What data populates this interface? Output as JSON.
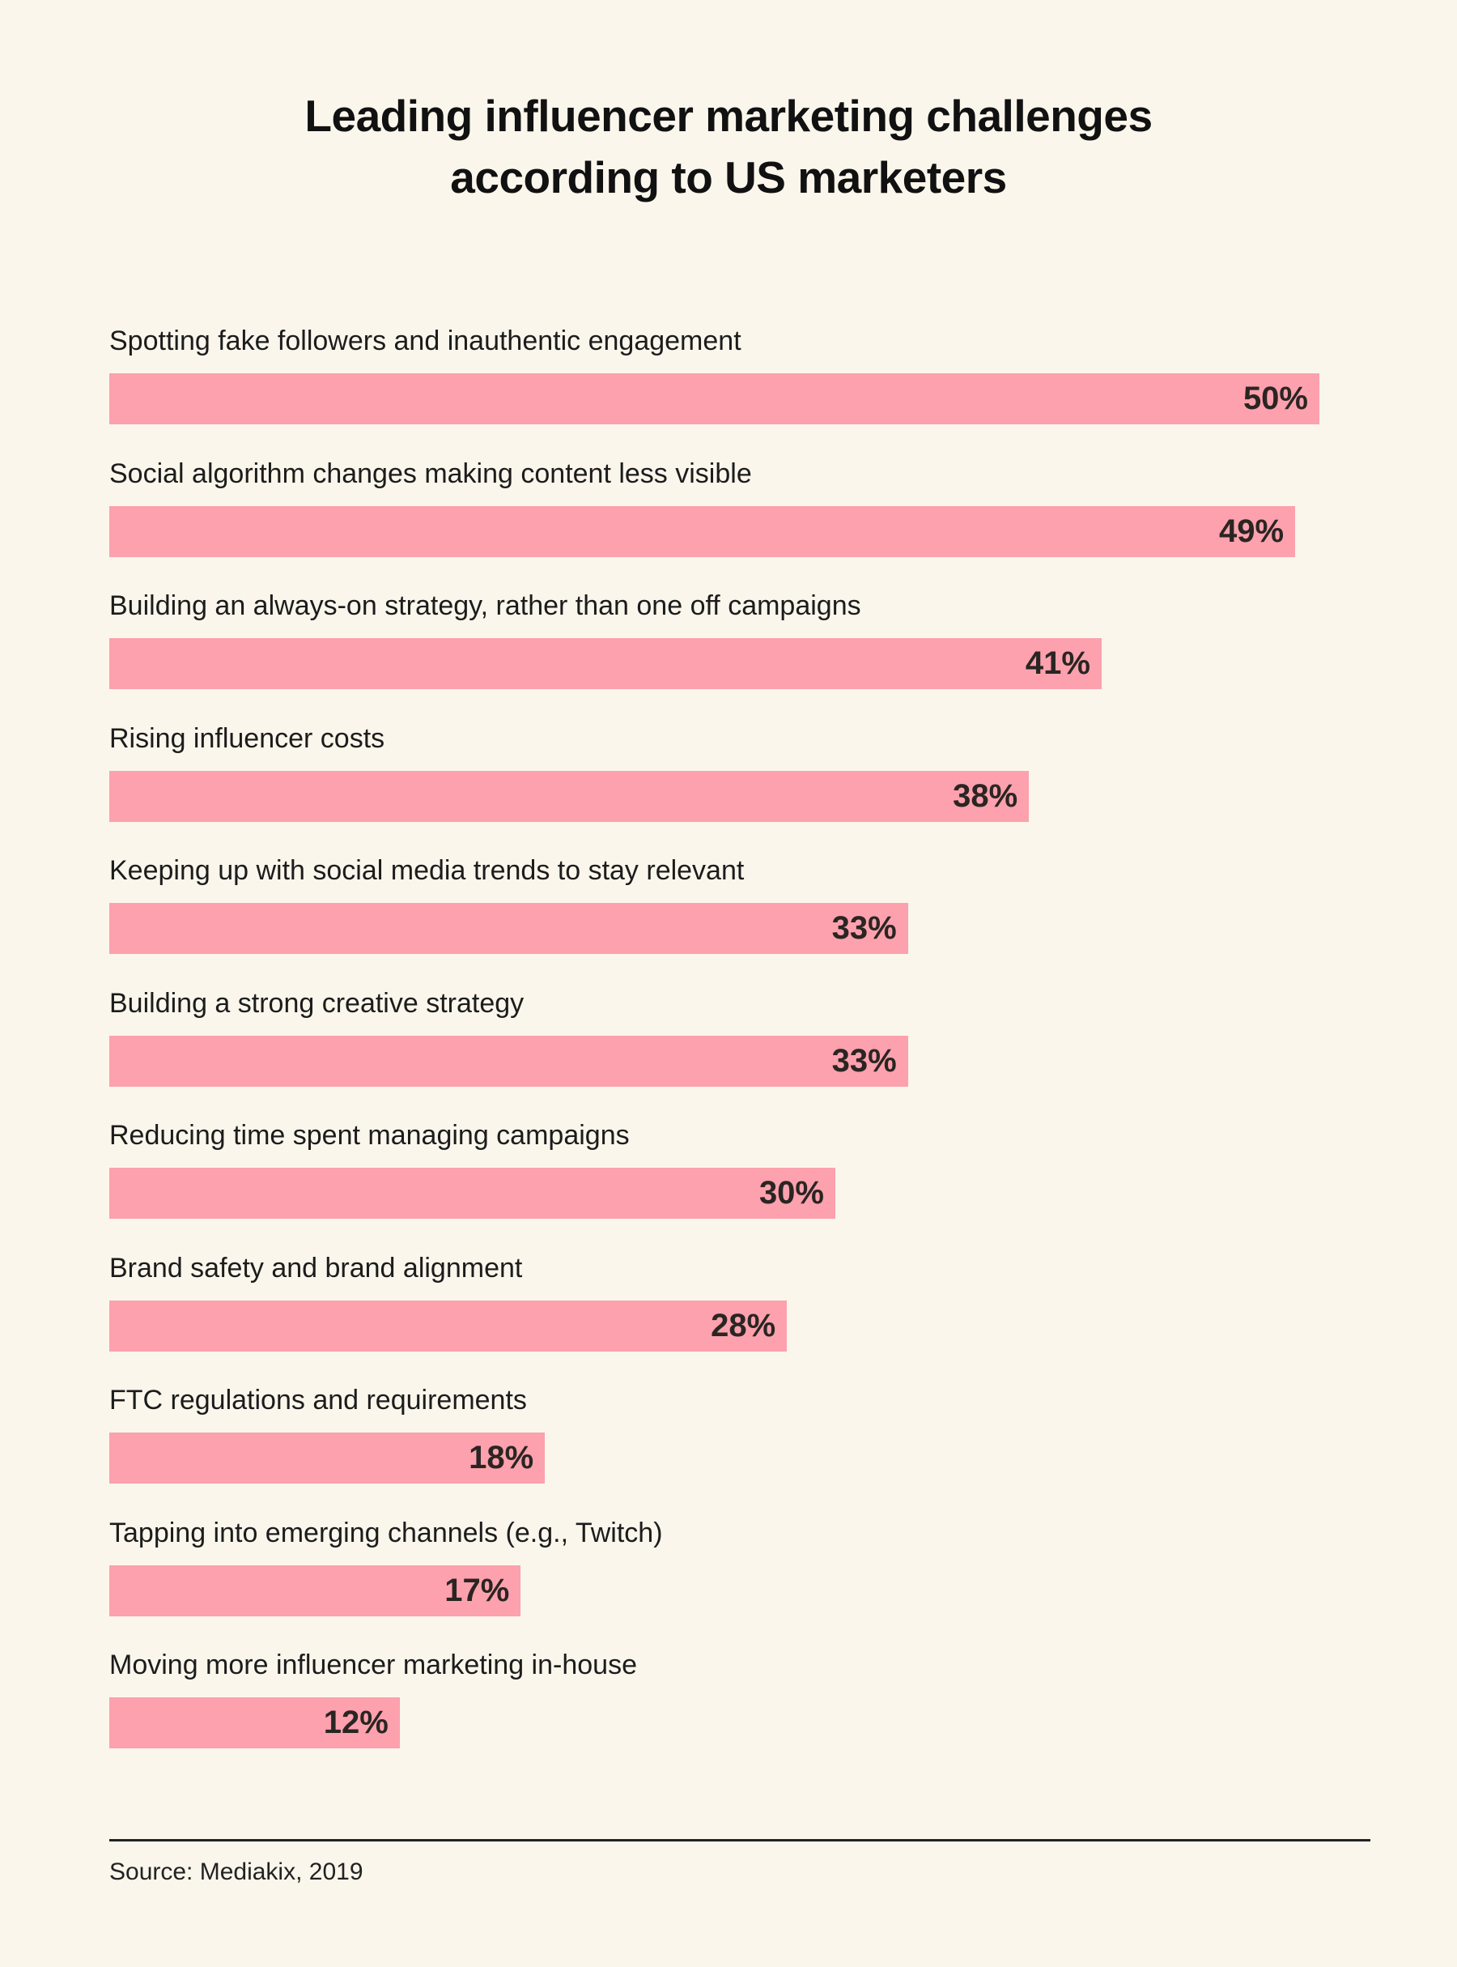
{
  "chart_data": {
    "type": "bar",
    "orientation": "horizontal",
    "title": "Leading influencer marketing challenges according to US marketers",
    "title_lines": [
      "Leading influencer marketing challenges",
      "according to US marketers"
    ],
    "categories": [
      "Spotting fake followers and inauthentic engagement",
      "Social algorithm changes making content less visible",
      "Building an always-on strategy, rather than one off campaigns",
      "Rising influencer costs",
      "Keeping up with social media trends to stay relevant",
      "Building a strong creative strategy",
      "Reducing time spent managing campaigns",
      "Brand safety and brand alignment",
      "FTC regulations and requirements",
      "Tapping into emerging channels (e.g., Twitch)",
      "Moving more influencer marketing in-house"
    ],
    "values": [
      50,
      49,
      41,
      38,
      33,
      33,
      30,
      28,
      18,
      17,
      12
    ],
    "value_labels": [
      "50%",
      "49%",
      "41%",
      "38%",
      "33%",
      "33%",
      "30%",
      "28%",
      "18%",
      "17%",
      "12%"
    ],
    "unit": "%",
    "xlim": [
      0,
      50
    ],
    "grid": false,
    "bar_color": "#fca1ad",
    "background_color": "#fbf6ec",
    "source": "Source: Mediakix, 2019"
  }
}
